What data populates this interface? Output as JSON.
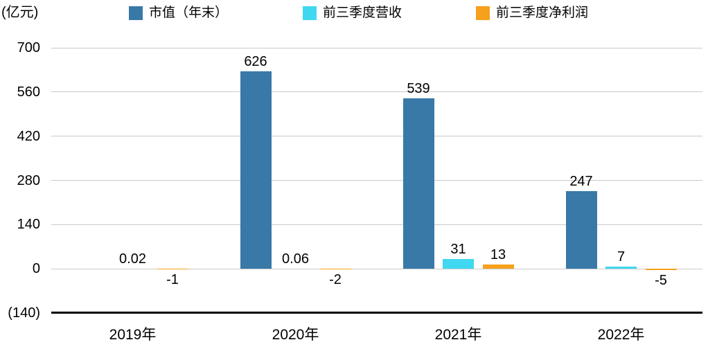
{
  "chart_data": {
    "type": "bar",
    "title": "",
    "ylabel": "(亿元)",
    "categories": [
      "2019年",
      "2020年",
      "2021年",
      "2022年"
    ],
    "series": [
      {
        "name": "市值（年末）",
        "color": "#3879A8",
        "values": [
          null,
          626,
          539,
          247
        ]
      },
      {
        "name": "前三季度营收",
        "color": "#40D8F0",
        "values": [
          0.02,
          0.06,
          31,
          7
        ]
      },
      {
        "name": "前三季度净利润",
        "color": "#F7A01B",
        "values": [
          -1,
          -2,
          13,
          -5
        ]
      }
    ],
    "ylim": [
      -140,
      700
    ],
    "yticks": [
      700,
      560,
      420,
      280,
      140,
      0,
      -140
    ],
    "ytick_labels": [
      "700",
      "560",
      "420",
      "280",
      "140",
      "0",
      "(140)"
    ],
    "grid": "horizontal",
    "grid_color": "#C9C9C9",
    "axis_color": "#000000",
    "legend_position": "top",
    "background_color": "#FFFFFF"
  }
}
